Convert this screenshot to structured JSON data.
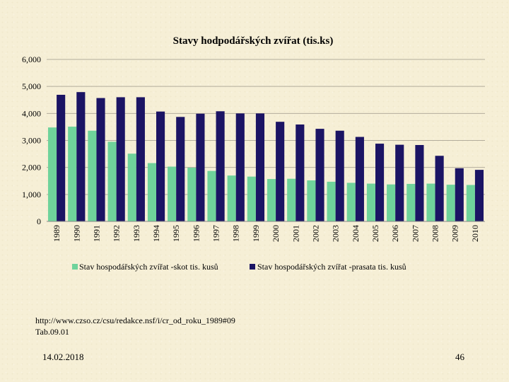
{
  "chart_data": {
    "type": "bar",
    "title": "Stavy hodpodářských zvířat (tis.ks)",
    "xlabel": "",
    "ylabel": "",
    "ylim": [
      0,
      6000
    ],
    "yticks": [
      "0",
      "1,000",
      "2,000",
      "3,000",
      "4,000",
      "5,000",
      "6,000"
    ],
    "ytick_values": [
      0,
      1000,
      2000,
      3000,
      4000,
      5000,
      6000
    ],
    "grid": true,
    "legend_position": "bottom",
    "categories": [
      "1989",
      "1990",
      "1991",
      "1992",
      "1993",
      "1994",
      "1995",
      "1996",
      "1997",
      "1998",
      "1999",
      "2000",
      "2001",
      "2002",
      "2003",
      "2004",
      "2005",
      "2006",
      "2007",
      "2008",
      "2009",
      "2010"
    ],
    "series": [
      {
        "name": "Stav hospodářských zvířat -skot tis. kusů",
        "color": "#6fd39b",
        "values": [
          3480,
          3510,
          3360,
          2950,
          2510,
          2160,
          2030,
          1990,
          1870,
          1700,
          1660,
          1570,
          1580,
          1520,
          1470,
          1430,
          1400,
          1370,
          1390,
          1400,
          1360,
          1350
        ]
      },
      {
        "name": "Stav hospodářských zvířat -prasata tis. kusů",
        "color": "#1b1464",
        "values": [
          4690,
          4790,
          4570,
          4600,
          4600,
          4070,
          3870,
          3990,
          4080,
          4000,
          4000,
          3690,
          3590,
          3430,
          3360,
          3130,
          2880,
          2840,
          2830,
          2430,
          1970,
          1910
        ]
      }
    ]
  },
  "source": {
    "url": "http://www.czso.cz/csu/redakce.nsf/i/cr_od_roku_1989#09",
    "table": "Tab.09.01"
  },
  "footer": {
    "date": "14.02.2018",
    "page": "46"
  }
}
